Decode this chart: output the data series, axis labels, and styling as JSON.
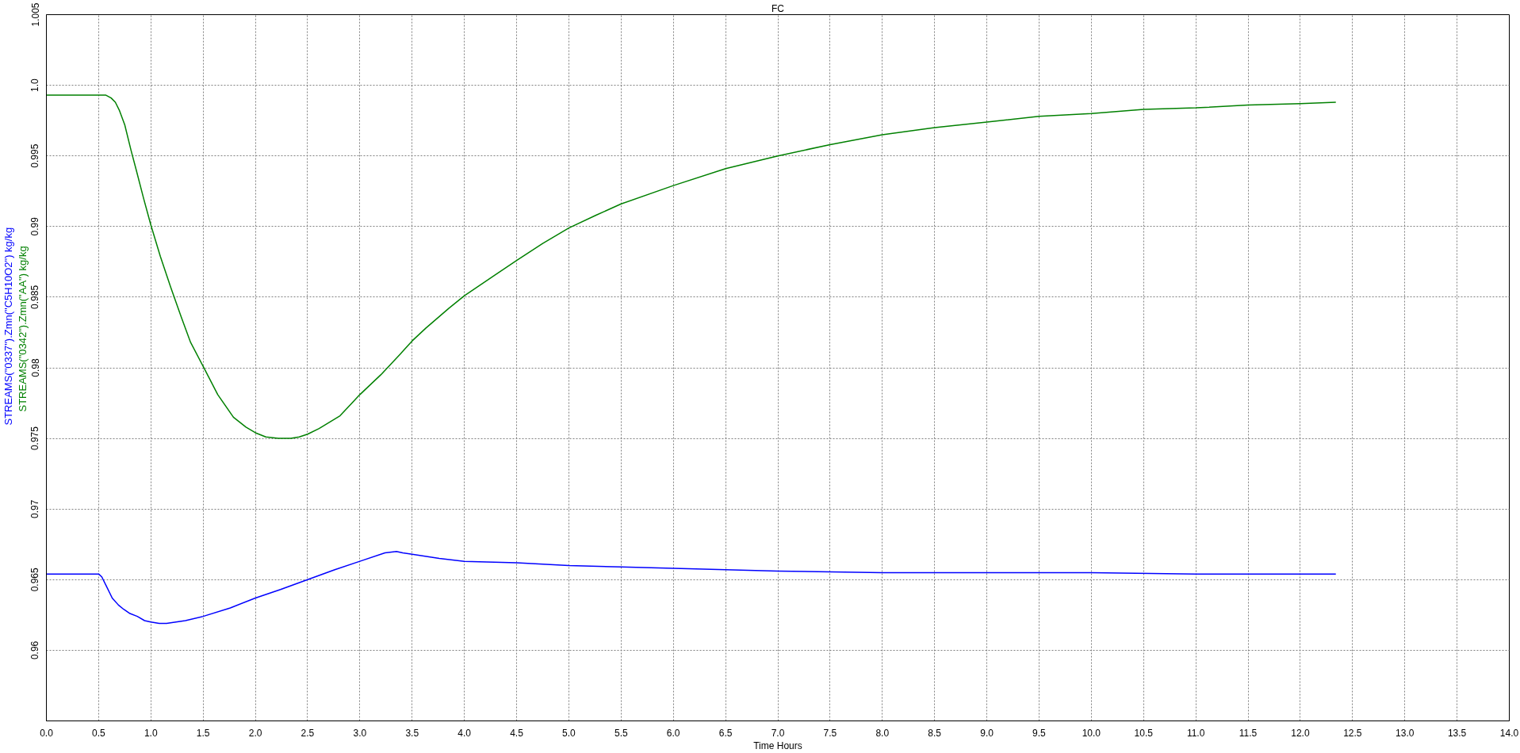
{
  "chart_data": {
    "type": "line",
    "title": "FC",
    "xlabel": "Time Hours",
    "xlim": [
      0,
      14
    ],
    "ylim": [
      0.955,
      1.005
    ],
    "xticks": [
      {
        "value": 0,
        "label": "0.0"
      },
      0.5,
      {
        "value": 1,
        "label": "1.0"
      },
      1.5,
      {
        "value": 2,
        "label": "2.0"
      },
      2.5,
      {
        "value": 3,
        "label": "3.0"
      },
      3.5,
      {
        "value": 4,
        "label": "4.0"
      },
      4.5,
      {
        "value": 5,
        "label": "5.0"
      },
      5.5,
      {
        "value": 6,
        "label": "6.0"
      },
      6.5,
      {
        "value": 7,
        "label": "7.0"
      },
      7.5,
      {
        "value": 8,
        "label": "8.0"
      },
      8.5,
      {
        "value": 9,
        "label": "9.0"
      },
      9.5,
      {
        "value": 10,
        "label": "10.0"
      },
      10.5,
      {
        "value": 11,
        "label": "11.0"
      },
      11.5,
      {
        "value": 12,
        "label": "12.0"
      },
      12.5,
      {
        "value": 13,
        "label": "13.0"
      },
      13.5,
      {
        "value": 14,
        "label": "14.0"
      }
    ],
    "yticks": [
      0.96,
      0.965,
      0.97,
      0.975,
      0.98,
      0.985,
      0.99,
      0.995,
      {
        "value": 1.0,
        "label": "1.0"
      },
      1.005
    ],
    "grid": true,
    "legend": "left",
    "line_style": "solid",
    "series": [
      {
        "name": "STREAMS(\"0337\").Zmn(\"C5H10O2\") kg/kg",
        "color": "#0000ff",
        "x": [
          0,
          0.5,
          0.53,
          0.57,
          0.63,
          0.69,
          0.74,
          0.8,
          0.87,
          0.94,
          1.0,
          1.08,
          1.15,
          1.24,
          1.33,
          1.5,
          1.76,
          2.0,
          2.24,
          2.5,
          2.76,
          3.0,
          3.24,
          3.35,
          3.41,
          3.5,
          3.76,
          4.0,
          4.5,
          5.0,
          5.5,
          6.0,
          6.5,
          7.0,
          8.0,
          9.0,
          10.0,
          11.0,
          12.34
        ],
        "values": [
          0.9654,
          0.9654,
          0.9652,
          0.9646,
          0.9637,
          0.9632,
          0.9629,
          0.9626,
          0.9624,
          0.9621,
          0.962,
          0.9619,
          0.9619,
          0.962,
          0.9621,
          0.9624,
          0.963,
          0.9637,
          0.9643,
          0.965,
          0.9657,
          0.9663,
          0.9669,
          0.967,
          0.9669,
          0.9668,
          0.9665,
          0.9663,
          0.9662,
          0.966,
          0.9659,
          0.9658,
          0.9657,
          0.9656,
          0.9655,
          0.9655,
          0.9655,
          0.9654,
          0.9654
        ]
      },
      {
        "name": "STREAMS(\"0342\").Zmn(\"AA\") kg/kg",
        "color": "#008000",
        "x": [
          0,
          0.5,
          0.57,
          0.62,
          0.66,
          0.7,
          0.75,
          0.81,
          0.86,
          0.93,
          1.0,
          1.09,
          1.19,
          1.29,
          1.38,
          1.5,
          1.64,
          1.79,
          1.91,
          2.0,
          2.1,
          2.22,
          2.34,
          2.42,
          2.5,
          2.61,
          2.81,
          3.0,
          3.2,
          3.39,
          3.5,
          3.63,
          3.74,
          3.85,
          4.0,
          4.14,
          4.28,
          4.5,
          4.75,
          5.0,
          5.26,
          5.5,
          6.0,
          6.5,
          7.0,
          7.5,
          8.0,
          8.5,
          9.0,
          9.5,
          10.0,
          10.5,
          11.0,
          11.5,
          12.0,
          12.34
        ],
        "values": [
          0.9993,
          0.9993,
          0.9993,
          0.9991,
          0.9988,
          0.9982,
          0.9972,
          0.9954,
          0.994,
          0.992,
          0.9901,
          0.9879,
          0.9857,
          0.9836,
          0.9818,
          0.9801,
          0.9781,
          0.9765,
          0.9758,
          0.9754,
          0.9751,
          0.975,
          0.975,
          0.9751,
          0.9753,
          0.9757,
          0.9766,
          0.9781,
          0.9795,
          0.981,
          0.9819,
          0.9828,
          0.9835,
          0.9842,
          0.9851,
          0.9858,
          0.9865,
          0.9876,
          0.9888,
          0.9899,
          0.9908,
          0.9916,
          0.9929,
          0.9941,
          0.995,
          0.9958,
          0.9965,
          0.997,
          0.9974,
          0.9978,
          0.998,
          0.9983,
          0.9984,
          0.9986,
          0.9987,
          0.9988
        ]
      }
    ]
  }
}
